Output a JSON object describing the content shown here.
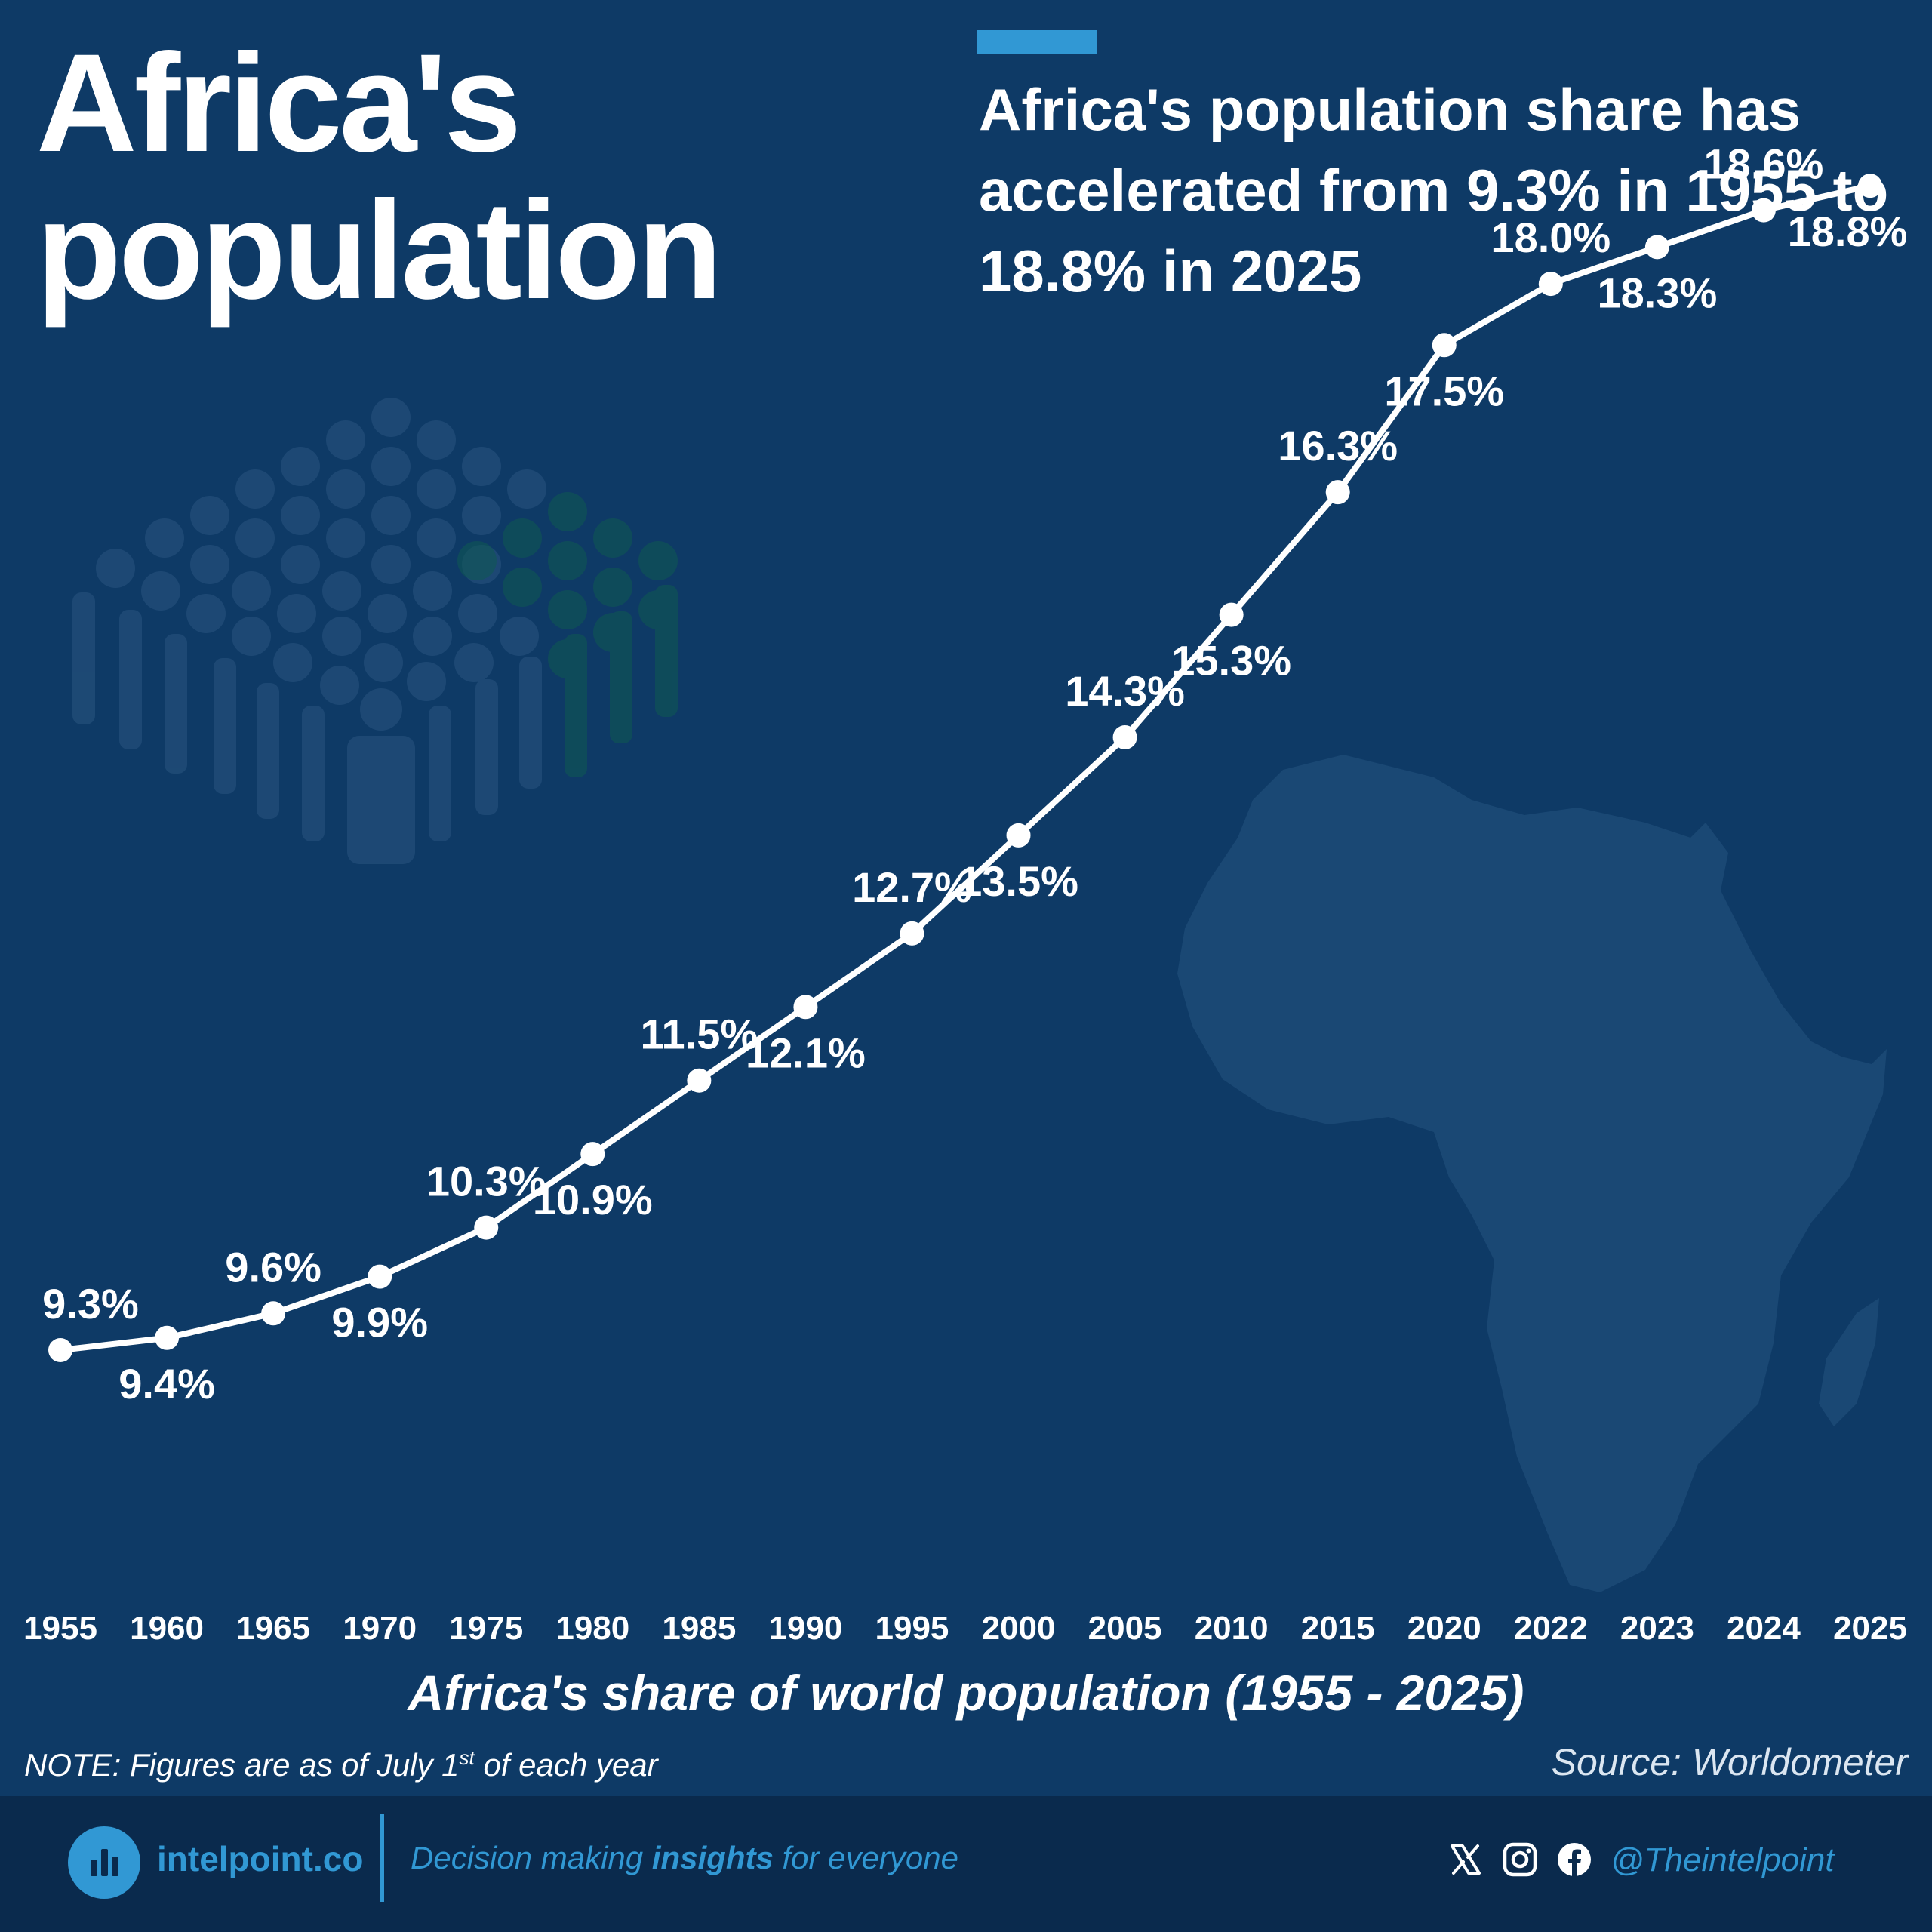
{
  "header": {
    "title_line1": "Africa's",
    "title_line2": "population",
    "subtitle": "Africa's population share has accelerated from 9.3% in 1955 to 18.8% in 2025"
  },
  "chart_data": {
    "type": "line",
    "title": "Africa's share of world population (1955 - 2025)",
    "categories": [
      "1955",
      "1960",
      "1965",
      "1970",
      "1975",
      "1980",
      "1985",
      "1990",
      "1995",
      "2000",
      "2005",
      "2010",
      "2015",
      "2020",
      "2022",
      "2023",
      "2024",
      "2025"
    ],
    "series": [
      {
        "values": [
          9.3,
          9.4,
          9.6,
          9.9,
          10.3,
          10.9,
          11.5,
          12.1,
          12.7,
          13.5,
          14.3,
          15.3,
          16.3,
          17.5,
          18.0,
          18.3,
          18.6,
          18.8
        ]
      }
    ],
    "data_labels": [
      "9.3%",
      "9.4%",
      "9.6%",
      "9.9%",
      "10.3%",
      "10.9%",
      "11.5%",
      "12.1%",
      "12.7%",
      "13.5%",
      "14.3%",
      "15.3%",
      "16.3%",
      "17.5%",
      "18.0%",
      "18.3%",
      "18.6%",
      "18.8%"
    ],
    "xlabel": "",
    "ylabel": "",
    "ylim": [
      6.4,
      19.7
    ],
    "grid": false,
    "legend": "none",
    "line_color": "#ffffff",
    "background_color": "#0e3a66"
  },
  "footnotes": {
    "note_prefix": "NOTE: Figures are as of July 1",
    "note_sup": "st",
    "note_suffix": " of each year",
    "source": "Source: Worldometer"
  },
  "footer": {
    "brand": "intelpoint.co",
    "tagline_pre": "Decision making ",
    "tagline_bold": "insights",
    "tagline_post": " for everyone",
    "handle": "@Theintelpoint",
    "icons": [
      "x-icon",
      "instagram-icon",
      "facebook-icon"
    ],
    "accent_color": "#3198d4"
  }
}
